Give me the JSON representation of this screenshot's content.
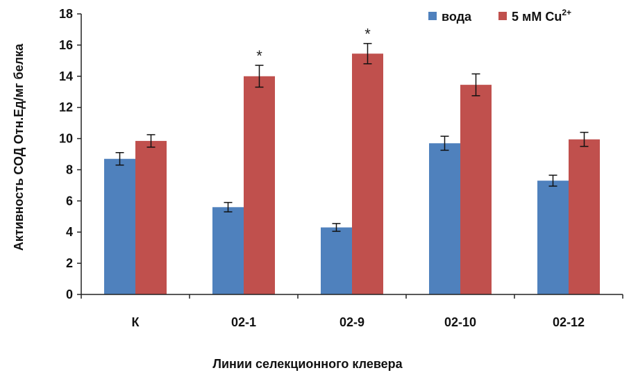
{
  "chart_data": {
    "type": "bar",
    "title": "",
    "xlabel": "Линии селекционного клевера",
    "ylabel": "Активность СОД Отн.Ед/мг белка",
    "ylim": [
      0,
      18
    ],
    "yticks": [
      0,
      2,
      4,
      6,
      8,
      10,
      12,
      14,
      16,
      18
    ],
    "grid": false,
    "legend_position": "top-right",
    "categories": [
      "К",
      "02-1",
      "02-9",
      "02-10",
      "02-12"
    ],
    "series": [
      {
        "name": "вода",
        "color": "#4F81BD",
        "values": [
          8.7,
          5.6,
          4.3,
          9.7,
          7.3
        ],
        "errors": [
          0.4,
          0.3,
          0.25,
          0.45,
          0.35
        ]
      },
      {
        "name": "5 мМ Cu",
        "name_superscript": "2+",
        "color": "#C0504D",
        "values": [
          9.85,
          14.0,
          15.45,
          13.45,
          9.95
        ],
        "errors": [
          0.4,
          0.7,
          0.65,
          0.7,
          0.45
        ]
      }
    ],
    "annotations": [
      {
        "text": "*",
        "category": "02-1",
        "series": 1
      },
      {
        "text": "*",
        "category": "02-9",
        "series": 1
      }
    ]
  }
}
